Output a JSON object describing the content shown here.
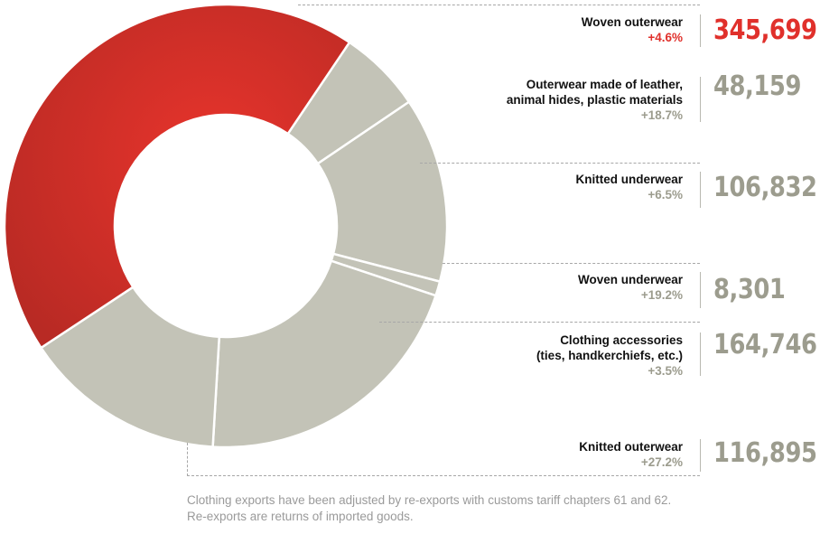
{
  "chart_data": {
    "type": "donut",
    "highlight_color": "#d9302a",
    "base_color": "#c3c3b7",
    "categories": [
      {
        "name": "Woven outerwear",
        "value": 345699,
        "change": "+4.6%",
        "value_label": "345,699",
        "highlight": true
      },
      {
        "name": "Outerwear made of leather,\nanimal hides, plastic materials",
        "value": 48159,
        "change": "+18.7%",
        "value_label": "48,159",
        "highlight": false
      },
      {
        "name": "Knitted underwear",
        "value": 106832,
        "change": "+6.5%",
        "value_label": "106,832",
        "highlight": false
      },
      {
        "name": "Woven underwear",
        "value": 8301,
        "change": "+19.2%",
        "value_label": "8,301",
        "highlight": false
      },
      {
        "name": "Clothing accessories\n(ties, handkerchiefs, etc.)",
        "value": 164746,
        "change": "+3.5%",
        "value_label": "164,746",
        "highlight": false
      },
      {
        "name": "Knitted outerwear",
        "value": 116895,
        "change": "+27.2%",
        "value_label": "116,895",
        "highlight": false
      }
    ],
    "footnote": "Clothing exports have been adjusted by re-exports with customs tariff chapters 61 and 62. Re-exports are returns of imported goods."
  }
}
